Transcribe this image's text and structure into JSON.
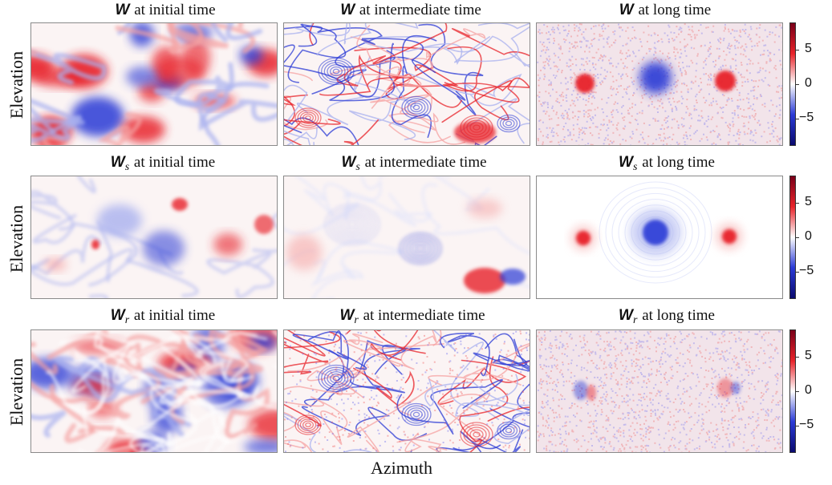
{
  "axes": {
    "xlabel": "Azimuth",
    "ylabel": "Elevation"
  },
  "rows": [
    {
      "symbol": "W",
      "subscript": "",
      "titles": [
        "at initial time",
        "at intermediate time",
        "at long time"
      ]
    },
    {
      "symbol": "W",
      "subscript": "s",
      "titles": [
        "at initial time",
        "at intermediate time",
        "at long time"
      ]
    },
    {
      "symbol": "W",
      "subscript": "r",
      "titles": [
        "at initial time",
        "at intermediate time",
        "at long time"
      ]
    }
  ],
  "colorbar": {
    "ticks": [
      5,
      0,
      -5
    ],
    "tick_labels": [
      "5",
      "0",
      "−5"
    ],
    "range": [
      -9,
      9
    ],
    "colors": {
      "high": "#7a0019",
      "mid": "#ffffff",
      "low": "#0a0a6e",
      "red": "#e8232a",
      "blue": "#2b3bd6"
    }
  },
  "panel_types": [
    [
      "init-full",
      "inter-full",
      "long-full"
    ],
    [
      "init-smooth",
      "inter-smooth",
      "long-smooth"
    ],
    [
      "init-residual",
      "inter-residual",
      "long-residual"
    ]
  ]
}
